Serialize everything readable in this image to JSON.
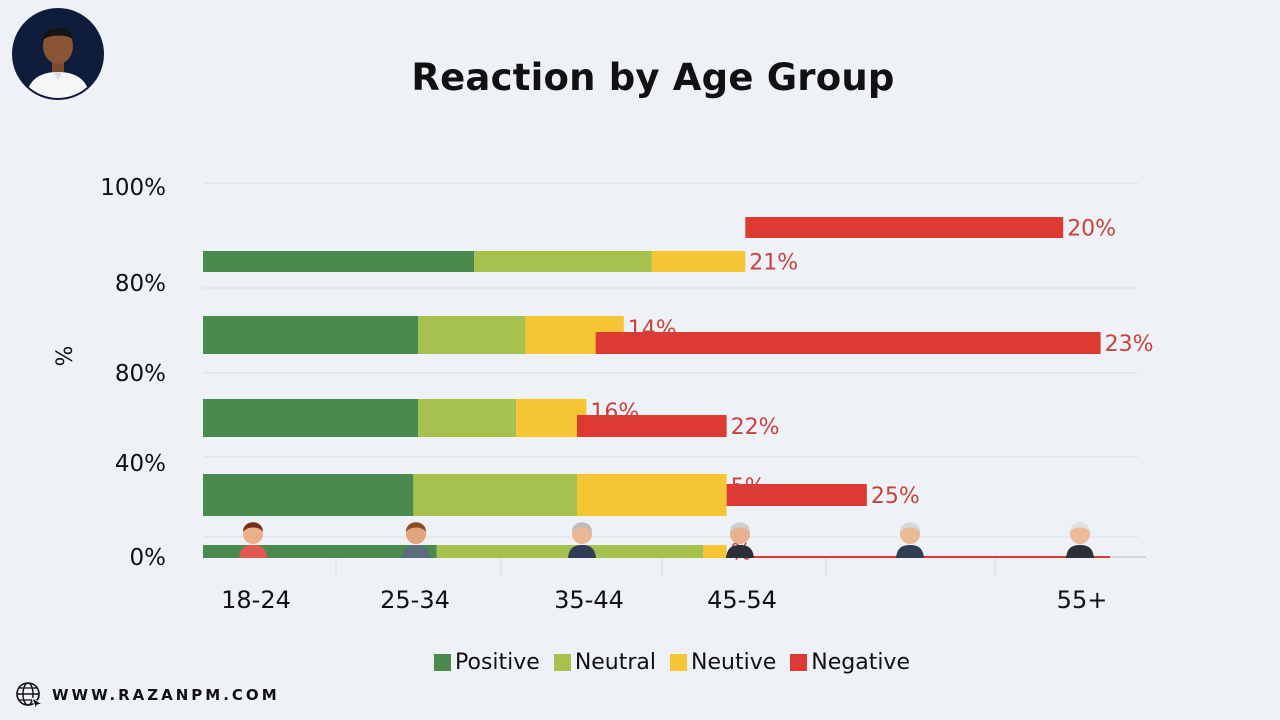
{
  "title": "Reaction by Age Group",
  "ylabel": "%",
  "footer": {
    "url": "WWW.RAZANPM.COM",
    "icon": "globe-icon"
  },
  "colors": {
    "positive": "#4a8a4f",
    "neutral": "#a6c14e",
    "neutive": "#f5c533",
    "negative": "#dd3a33",
    "label": "#c8423f",
    "grid": "#d9dde3"
  },
  "legend": [
    {
      "label": "Positive",
      "color": "#4a8a4f"
    },
    {
      "label": "Neutral",
      "color": "#a6c14e"
    },
    {
      "label": "Neutive",
      "color": "#f5c533"
    },
    {
      "label": "Negative",
      "color": "#dd3a33"
    }
  ],
  "chart_data": {
    "type": "bar",
    "orientation": "horizontal-stacked",
    "title": "Reaction by Age Group",
    "ylabel": "%",
    "y_tick_labels": [
      "100%",
      "80%",
      "80%",
      "40%",
      "0%"
    ],
    "x_tick_labels": [
      "18-24",
      "25-34",
      "35-44",
      "45-54",
      "55+"
    ],
    "xlim": [
      0,
      100
    ],
    "grid": true,
    "legend_position": "bottom",
    "bars": [
      {
        "segments": [
          {
            "series": "Positive",
            "value": 29
          },
          {
            "series": "Neutral",
            "value": 19
          },
          {
            "series": "Neutive",
            "value": 10
          }
        ],
        "label": "21%"
      },
      {
        "segments": [
          {
            "series": "Negative",
            "value": 34
          }
        ],
        "label": "20%",
        "offset": 58
      },
      {
        "segments": [
          {
            "series": "Positive",
            "value": 23
          },
          {
            "series": "Neutral",
            "value": 11.5
          },
          {
            "series": "Neutive",
            "value": 10.5
          }
        ],
        "label": "14%"
      },
      {
        "segments": [
          {
            "series": "Negative",
            "value": 54
          }
        ],
        "label": "23%",
        "offset": 42
      },
      {
        "segments": [
          {
            "series": "Positive",
            "value": 23
          },
          {
            "series": "Neutral",
            "value": 10.5
          },
          {
            "series": "Neutive",
            "value": 7.5
          }
        ],
        "label": "16%"
      },
      {
        "segments": [
          {
            "series": "Negative",
            "value": 16
          }
        ],
        "label": "22%",
        "offset": 40
      },
      {
        "segments": [
          {
            "series": "Positive",
            "value": 22.5
          },
          {
            "series": "Neutral",
            "value": 17.5
          },
          {
            "series": "Neutive",
            "value": 16
          }
        ],
        "label": "5%"
      },
      {
        "segments": [
          {
            "series": "Negative",
            "value": 15
          }
        ],
        "label": "25%",
        "offset": 56
      },
      {
        "segments": [
          {
            "series": "Positive",
            "value": 25
          },
          {
            "series": "Neutral",
            "value": 28.5
          },
          {
            "series": "Neutive",
            "value": 2.5
          }
        ],
        "label": "%"
      },
      {
        "segments": [
          {
            "series": "Negative",
            "value": 41
          }
        ],
        "offset": 56
      }
    ]
  }
}
